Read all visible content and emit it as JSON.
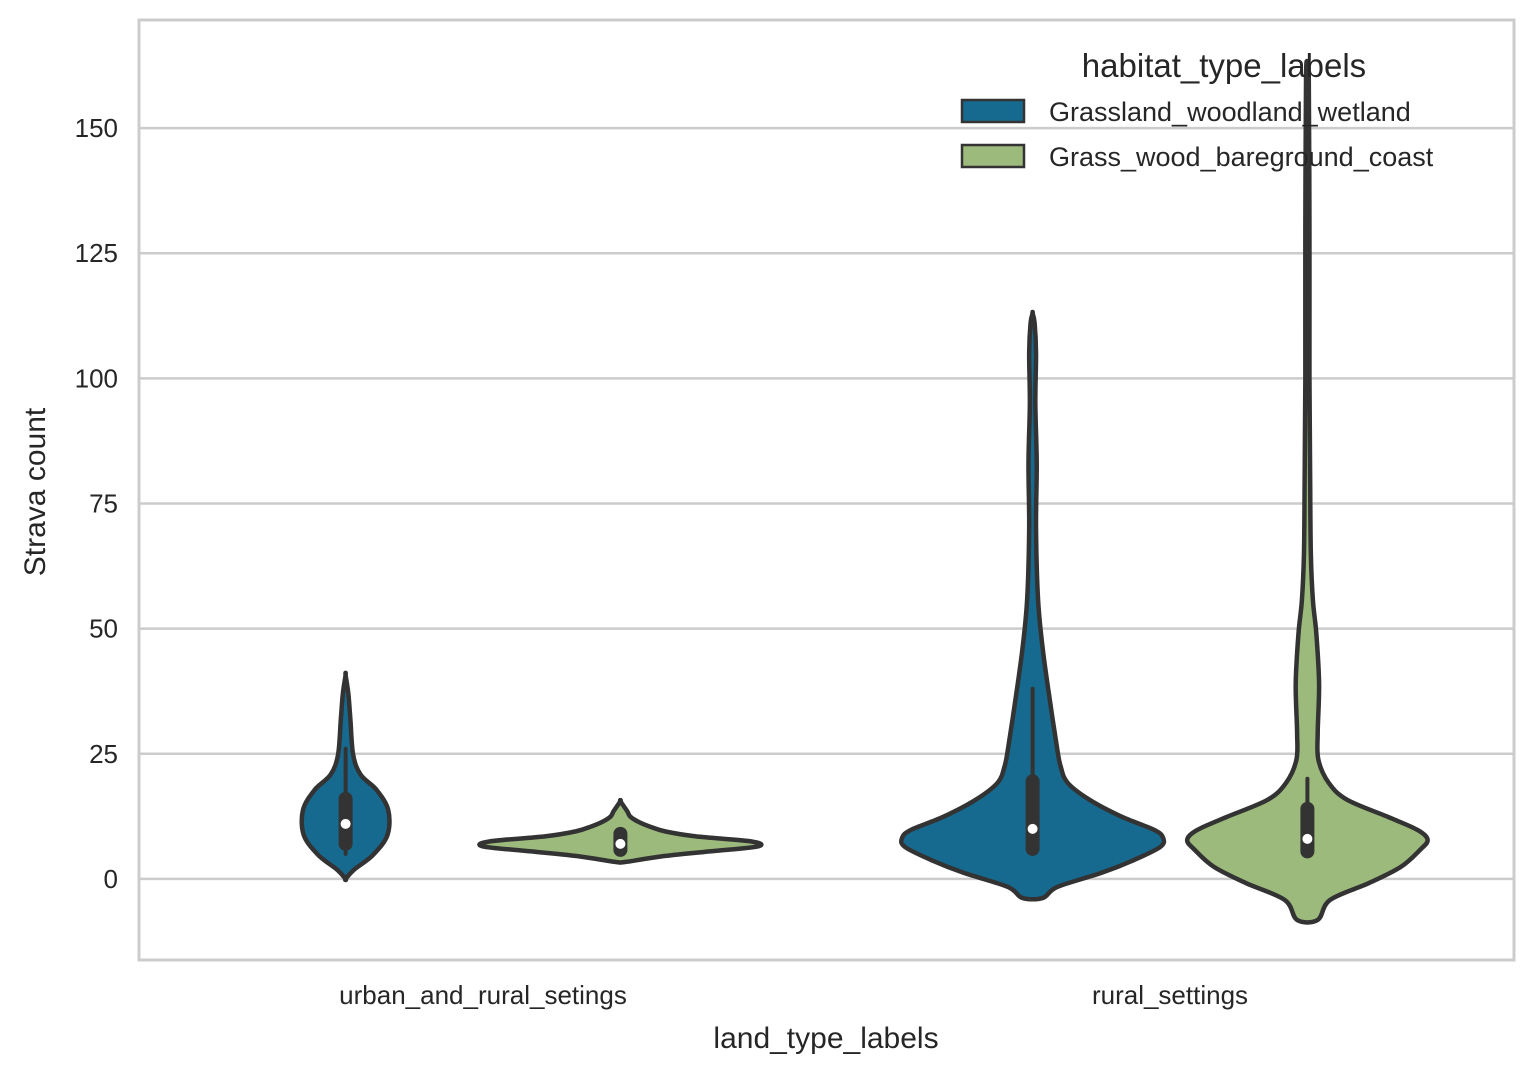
{
  "chart_data": {
    "type": "violin",
    "xlabel": "land_type_labels",
    "ylabel": "Strava count",
    "ylim": [
      -16.2,
      171.6
    ],
    "yticks": [
      0,
      25,
      50,
      75,
      100,
      125,
      150
    ],
    "grid": true,
    "categories": [
      "urban_and_rural_setings",
      "rural_settings"
    ],
    "legend": {
      "title": "habitat_type_labels",
      "placement": "top-right",
      "entries": [
        {
          "label": "Grassland_woodland_wetland",
          "color": "#176a8f"
        },
        {
          "label": "Grass_wood_bareground_coast",
          "color": "#9dba7d"
        }
      ]
    },
    "series": [
      {
        "name": "Grassland_woodland_wetland",
        "color": "#176a8f",
        "violins": [
          {
            "category": "urban_and_rural_setings",
            "density": [
              [
                0,
                0
              ],
              [
                1.8,
                0.012
              ],
              [
                4.8,
                0.04
              ],
              [
                8.8,
                0.061
              ],
              [
                13.8,
                0.062
              ],
              [
                17.8,
                0.045
              ],
              [
                20.8,
                0.022
              ],
              [
                24.8,
                0.011
              ],
              [
                31.8,
                0.007
              ],
              [
                37,
                0.004
              ],
              [
                40.7,
                0
              ]
            ],
            "box": {
              "whisker_low": 5,
              "q1": 7,
              "median": 11,
              "q3": 16,
              "whisker_high": 26
            }
          },
          {
            "category": "rural_settings",
            "density": [
              [
                -3.8,
                0.015
              ],
              [
                -1.6,
                0.036
              ],
              [
                1.2,
                0.1
              ],
              [
                3.8,
                0.148
              ],
              [
                6.4,
                0.186
              ],
              [
                8.2,
                0.19
              ],
              [
                9.8,
                0.177
              ],
              [
                12.4,
                0.13
              ],
              [
                15.8,
                0.083
              ],
              [
                19.2,
                0.051
              ],
              [
                22.4,
                0.041
              ],
              [
                25.8,
                0.036
              ],
              [
                35.8,
                0.025
              ],
              [
                45.7,
                0.015
              ],
              [
                55.7,
                0.008
              ],
              [
                70,
                0.005
              ],
              [
                83,
                0.006
              ],
              [
                95,
                0.004
              ],
              [
                105,
                0.005
              ],
              [
                111,
                0.003
              ],
              [
                113,
                0
              ]
            ],
            "box": {
              "whisker_low": 5,
              "q1": 6,
              "median": 10,
              "q3": 19.5,
              "whisker_high": 38
            }
          }
        ]
      },
      {
        "name": "Grass_wood_bareground_coast",
        "color": "#9dba7d",
        "violins": [
          {
            "category": "urban_and_rural_setings",
            "density": [
              [
                3.4,
                0.008
              ],
              [
                4.5,
                0.06
              ],
              [
                5.5,
                0.13
              ],
              [
                6.5,
                0.2
              ],
              [
                7.5,
                0.19
              ],
              [
                8.5,
                0.11
              ],
              [
                9.5,
                0.065
              ],
              [
                10.5,
                0.042
              ],
              [
                11.5,
                0.025
              ],
              [
                12.5,
                0.014
              ],
              [
                13.5,
                0.01
              ],
              [
                15.5,
                0
              ]
            ],
            "box": {
              "whisker_low": 5,
              "q1": 5.8,
              "median": 7,
              "q3": 9,
              "whisker_high": 9.5
            }
          },
          {
            "category": "rural_settings",
            "density": [
              [
                -8.2,
                0.015
              ],
              [
                -4.2,
                0.033
              ],
              [
                -0.8,
                0.09
              ],
              [
                2.4,
                0.136
              ],
              [
                5.8,
                0.164
              ],
              [
                7.8,
                0.175
              ],
              [
                9.8,
                0.16
              ],
              [
                12.4,
                0.117
              ],
              [
                15.8,
                0.058
              ],
              [
                19.2,
                0.031
              ],
              [
                23.8,
                0.016
              ],
              [
                29.2,
                0.015
              ],
              [
                39,
                0.017
              ],
              [
                49,
                0.013
              ],
              [
                55.7,
                0.008
              ],
              [
                65,
                0.005
              ],
              [
                80,
                0.004
              ],
              [
                100,
                0.003
              ],
              [
                130,
                0.003
              ],
              [
                160,
                0.002
              ],
              [
                163,
                0
              ]
            ],
            "box": {
              "whisker_low": 5,
              "q1": 5.5,
              "median": 8,
              "q3": 14,
              "whisker_high": 20
            }
          }
        ]
      }
    ]
  }
}
